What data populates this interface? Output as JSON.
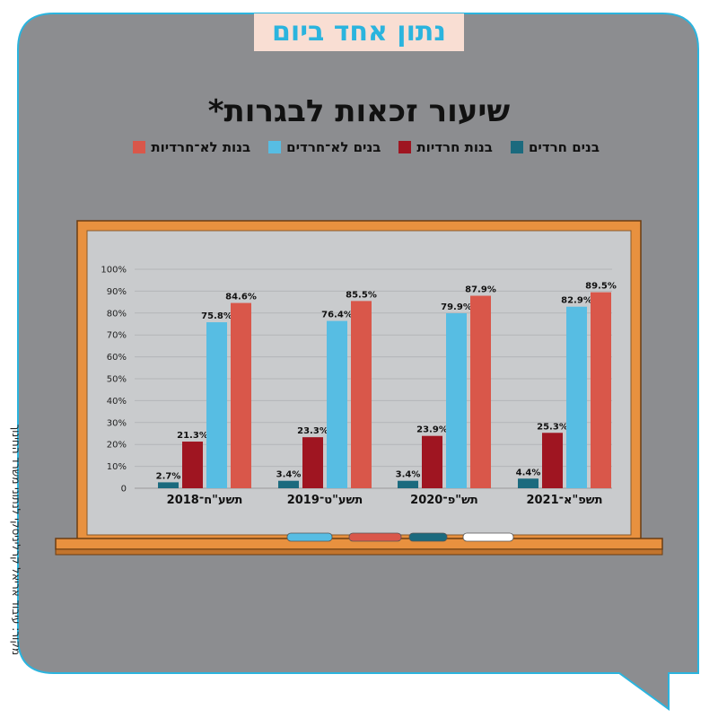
{
  "banner": {
    "text": "נתון אחד ביום"
  },
  "source": {
    "text": "מקור: עיבוד אריאל קרליניסקי לנתוני משרד החינוך"
  },
  "colors": {
    "background_gray": "#8c8d90",
    "board": "#c9cbcd",
    "frame": "#e8913f",
    "bubble_outline": "#2bb4de"
  },
  "chart_data": {
    "type": "bar",
    "title": "שיעור זכאות לבגרות*",
    "categories": [
      "תשפ\"א־2021",
      "תש\"פ־2020",
      "תשע\"ט־2019",
      "תשע\"ח־2018"
    ],
    "category_order": "right-to-left",
    "series": [
      {
        "name": "בנים חרדים",
        "color": "#1b6a7e",
        "values": [
          4.4,
          3.4,
          3.4,
          2.7
        ],
        "labels": [
          "4.4%",
          "3.4%",
          "3.4%",
          "2.7%"
        ]
      },
      {
        "name": "בנות חרדיות",
        "color": "#9f1521",
        "values": [
          25.3,
          23.9,
          23.3,
          21.3
        ],
        "labels": [
          "25.3%",
          "23.9%",
          "23.3%",
          "21.3%"
        ]
      },
      {
        "name": "בנים לא־חרדים",
        "color": "#57bde3",
        "values": [
          82.9,
          79.9,
          76.4,
          75.8
        ],
        "labels": [
          "82.9%",
          "79.9%",
          "76.4%",
          "75.8%"
        ]
      },
      {
        "name": "בנות לא־חרדיות",
        "color": "#d9574a",
        "values": [
          89.5,
          87.9,
          85.5,
          84.6
        ],
        "labels": [
          "89.5%",
          "87.9%",
          "85.5%",
          "84.6%"
        ]
      }
    ],
    "legend_order": [
      "בנות לא־חרדיות",
      "בנים לא־חרדים",
      "בנות חרדיות",
      "בנים חרדים"
    ],
    "legend_position": "top",
    "yticks": [
      "0",
      "10%",
      "20%",
      "30%",
      "40%",
      "50%",
      "60%",
      "70%",
      "80%",
      "90%",
      "100%"
    ],
    "ylim": [
      0,
      100
    ],
    "grid": true,
    "chalk_colors": [
      "#57bde3",
      "#d9574a",
      "#1b6a7e",
      "#ffffff"
    ]
  }
}
